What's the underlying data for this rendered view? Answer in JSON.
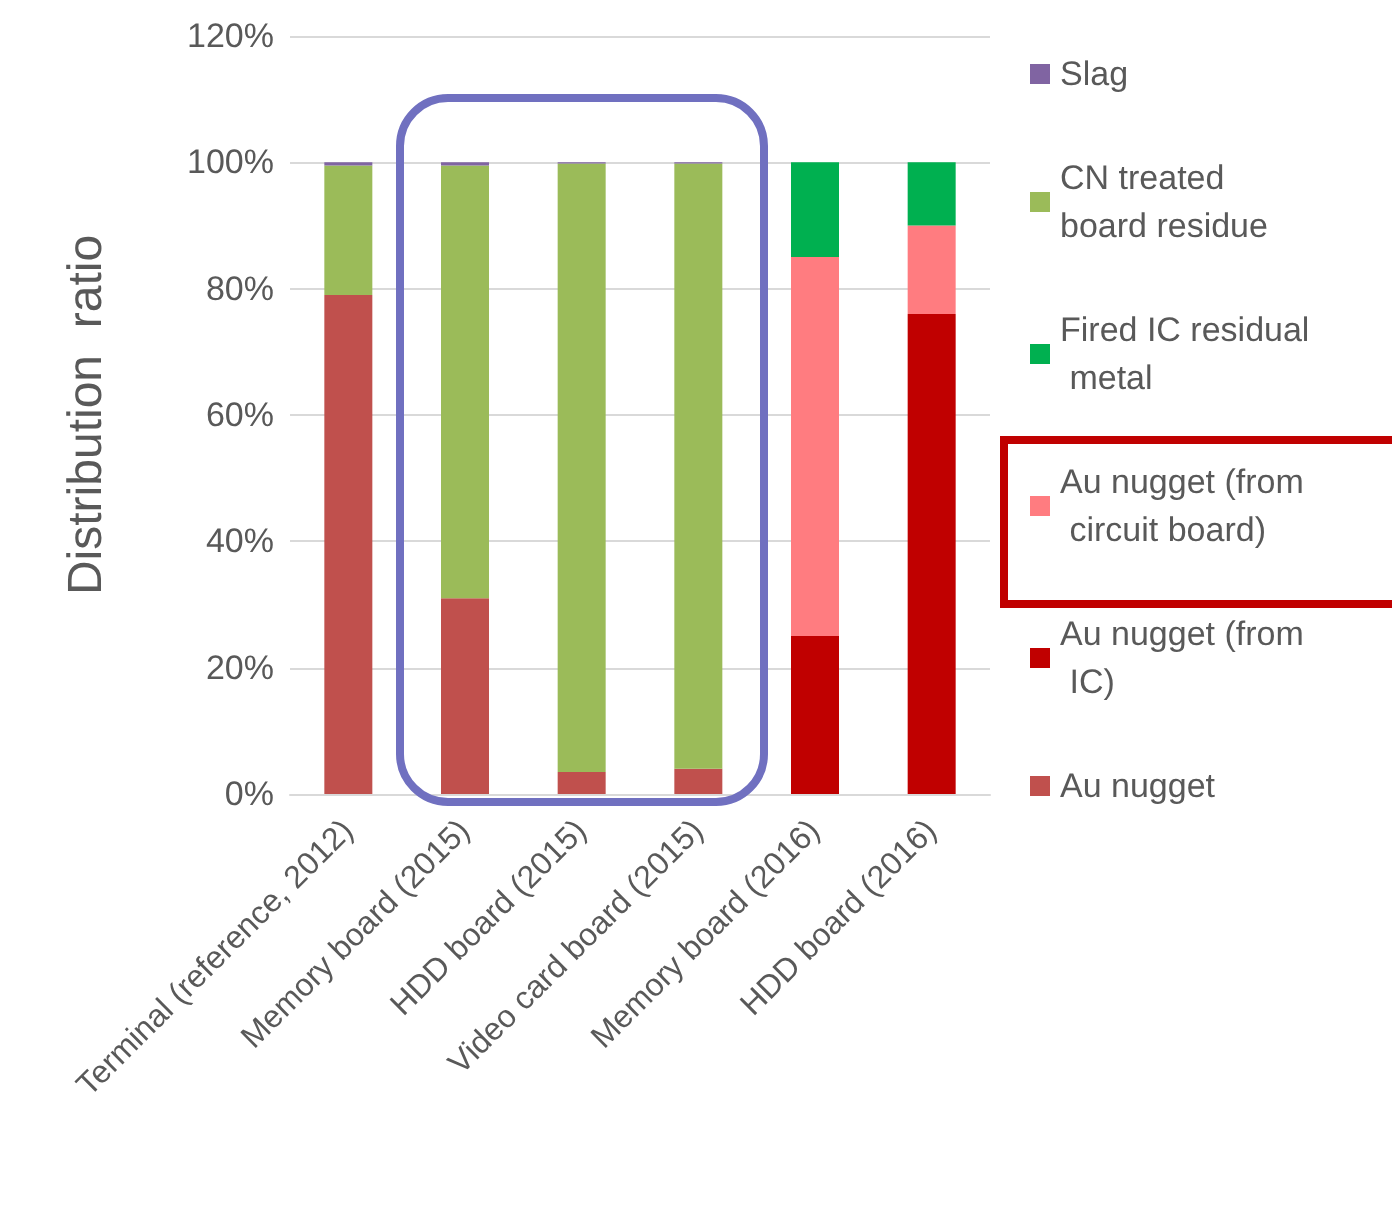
{
  "chart_data": {
    "type": "bar",
    "stacked": true,
    "ylabel": "Distribution  ratio",
    "categories": [
      "Terminal (reference, 2012)",
      "Memory board (2015)",
      "HDD board (2015)",
      "Video card board (2015)",
      "Memory board (2016)",
      "HDD board (2016)"
    ],
    "series": [
      {
        "name": "Au nugget",
        "color": "#c0504d",
        "values": [
          79,
          31,
          3.5,
          4,
          null,
          null
        ]
      },
      {
        "name": "Au nugget (from IC)",
        "color": "#c00000",
        "values": [
          null,
          null,
          null,
          null,
          25,
          76
        ]
      },
      {
        "name": "Au nugget (from circuit board)",
        "color": "#ff7c80",
        "values": [
          null,
          null,
          null,
          null,
          60,
          14
        ]
      },
      {
        "name": "Fired IC residual metal",
        "color": "#00b050",
        "values": [
          null,
          null,
          null,
          null,
          15,
          10
        ]
      },
      {
        "name": "CN treated board residue",
        "color": "#9bbb59",
        "values": [
          20.5,
          68.5,
          96.3,
          95.8,
          null,
          null
        ]
      },
      {
        "name": "Slag",
        "color": "#8064a2",
        "values": [
          0.5,
          0.5,
          0.2,
          0.2,
          null,
          null
        ]
      }
    ],
    "ylim": [
      0,
      120
    ],
    "yticks": [
      {
        "value": 0,
        "label": "0%"
      },
      {
        "value": 20,
        "label": "20%"
      },
      {
        "value": 40,
        "label": "40%"
      },
      {
        "value": 60,
        "label": "60%"
      },
      {
        "value": 80,
        "label": "80%"
      },
      {
        "value": 100,
        "label": "100%"
      },
      {
        "value": 120,
        "label": "120%"
      }
    ],
    "grid": "y",
    "legend": "right"
  }
}
